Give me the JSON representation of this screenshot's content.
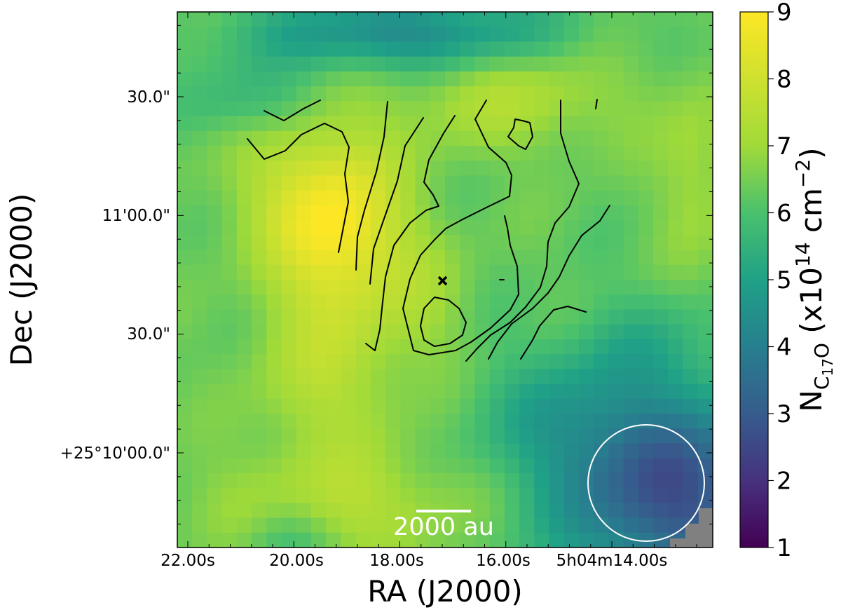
{
  "chart_data": {
    "type": "heatmap",
    "xlabel": "RA (J2000)",
    "ylabel": "Dec (J2000)",
    "x_ticks": [
      "22.00s",
      "20.00s",
      "18.00s",
      "16.00s",
      "5h04m14.00s"
    ],
    "y_ticks": [
      "30.0\"",
      "11'00.0\"",
      "30.0\"",
      "+25°10'00.0\""
    ],
    "colorbar": {
      "colormap": "viridis",
      "label_main": "N",
      "label_sub": "C",
      "label_sub_sub": "17",
      "label_sub_tail": "O",
      "label_unit_open": " (x10",
      "label_exp1": "14",
      "label_mid": " cm",
      "label_exp2": "−2",
      "label_close": ")",
      "range": [
        1,
        9
      ],
      "ticks": [
        "1",
        "2",
        "3",
        "4",
        "5",
        "6",
        "7",
        "8",
        "9"
      ]
    },
    "value_summary": {
      "peak_value": 8.9,
      "peak_location": "left of centre, near RA 19.5s, Dec 11'00\"",
      "minimum_value": 2.3,
      "minimum_location": "lower-right corner",
      "typical_range": [
        5.5,
        7.5
      ]
    },
    "annotations": {
      "scale_bar_label": "2000 au",
      "marker": "×",
      "beam": "white circle (lower right)",
      "contour_color": "#000000",
      "no_data_color": "#808080"
    }
  }
}
